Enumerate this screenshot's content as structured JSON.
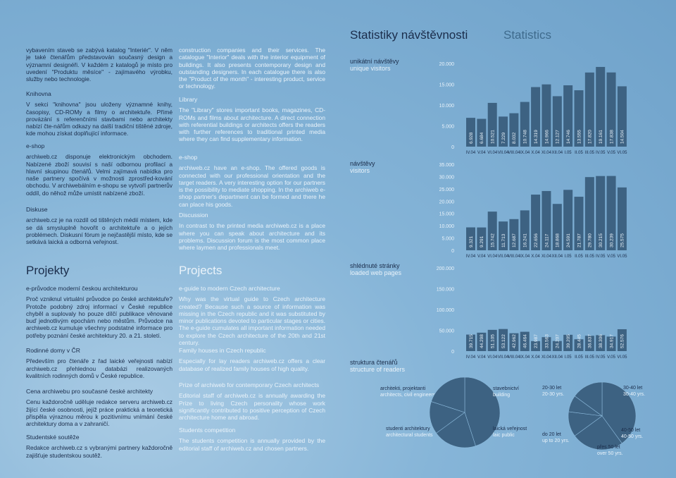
{
  "stats_title": "Statistiky návštěvnosti",
  "stats_title_en": "Statistics",
  "left": {
    "intro": "vybavením staveb se zabývá katalog \"Interiér\". V něm je také čtenářům představován současný design a významní designéři. V každém z katalogů je místo pro uvedení \"Produktu měsíce\" - zajímavého výrobku, služby nebo technologie.",
    "projects_heading": "Projekty",
    "blocks": [
      {
        "heading": "Knihovna",
        "text": "V sekci \"knihovna\" jsou uloženy významné knihy, časopisy, CD-ROMy a filmy o architektuře. Přímé provázání s referenčními stavbami nebo architekty nabízí čte-nářům odkazy na další tradiční tištěné zdroje, kde mohou získat doplňující informace."
      },
      {
        "heading": "e-shop",
        "text": "archiweb.cz disponuje elektronickým obchodem. Nabízené zboží souvisí s naší odbornou profilací a hlavní skupinou čtenářů. Velmi zajímavá nabídka pro naše partnery spočívá v možnosti zprostřed-kování obchodu. V archiwebálním e-shopu se vytvoří partnerův oddíl, do něhož může umístit nabízené zboží."
      },
      {
        "heading": "Diskuse",
        "text": "archiweb.cz je na rozdíl od tištěných médií místem, kde se dá smysluplně hovořit o architektuře a o jejích problémech. Diskusní fórum je nejčastější místo, kde se setkává laická a odborná veřejnost."
      },
      {
        "heading": "e-průvodce moderní českou architekturou",
        "text": "Proč vzniknul virtuální průvodce po české architektuře? Protože podobný zdroj informací v České republice chyběl a suplovaly ho pouze dílčí publikace věnované buď jednotlivým epochám nebo městům. Průvodce na archiweb.cz kumuluje všechny podstatné informace pro potřeby poznání české architektury 20. a 21. století."
      },
      {
        "heading": "Rodinné domy v ČR",
        "text": "Především pro čtenáře z řad laické veřejnosti nabízí archiweb.cz přehlednou databázi realizovaných kvalitních rodinných domů v České republice."
      },
      {
        "heading": "Cena archiwebu pro současné české architekty",
        "text": "Cenu každoročně uděluje redakce serveru archiweb.cz žijící české osobnosti, jejíž práce praktická a teoretická přispěla výraznou měrou k pozitivnímu vnímání české architektury doma a v zahraničí."
      },
      {
        "heading": "Studentské soutěže",
        "text": "Redakce archiweb.cz s vybranými partnery každoročně zajišťuje studentskou soutěž."
      }
    ]
  },
  "middle": {
    "intro": "construction companies and their services. The catalogue \"Interior\" deals with the interior equipment of buildings. It also presents contemporary design and outstanding designers. In each catalogue there is also the \"Product of the month\" - interesting product, service or technology.",
    "projects_heading": "Projects",
    "blocks": [
      {
        "heading": "Library",
        "text": "The \"Library\" stores important books, magazines, CD-ROMs and films about architecture. A direct connection with referential buildings or architects offers the readers with further references to traditional printed media where they can find supplementary information."
      },
      {
        "heading": "e-shop",
        "text": "archiweb.cz have an e-shop. The offered goods is connected with our professional orientation and the target readers. A very interesting option for our partners is the possibility to mediate shopping. In the archiweb e-shop partner's department can be formed and there he can place his goods."
      },
      {
        "heading": "Discussion",
        "text": "In contrast to the printed media archiweb.cz is a place where you can speak about architecture and its problems. Discussion forum is the most common place where laymen and professionals meet."
      },
      {
        "heading": "e-guide to modern Czech architecture",
        "text": "Why was the virtual guide to Czech architecture created? Because such a source of information was missing in the Czech republic and it was substituted by minor publications devoted to particular stages or cities. The e-guide cumulates all important information needed to explore the Czech architecture of the 20th and 21st century."
      },
      {
        "heading": "Family houses in Czech republic",
        "text": "Especially for lay readers archiweb.cz offers a clear database of realized family houses of high quality."
      },
      {
        "heading": "Prize of archiweb for contemporary Czech architects",
        "text": "Editorial staff of archiweb.cz is annually awarding the Prize to living Czech personality whose work significantly contributed to positive perception of Czech architecture home and abroad."
      },
      {
        "heading": "Students competition",
        "text": "The students competition is annually provided by the editorial staff of archiweb.cz and chosen partners."
      }
    ]
  },
  "chart_data": [
    {
      "type": "bar",
      "title": "unikátní návštěvy",
      "subtitle": "unique visitors",
      "color": "#3d6282",
      "categories": [
        "IV.04",
        "V.04",
        "VI.04",
        "VII.04",
        "VIII.04",
        "IX.04",
        "X.04",
        "XI.04",
        "XII.04",
        "I.05",
        "II.05",
        "III.05",
        "IV.05",
        "V.05",
        "VI.05"
      ],
      "values": [
        6928,
        6684,
        10521,
        7229,
        8032,
        10748,
        14319,
        14966,
        12127,
        14746,
        13555,
        17820,
        19161,
        17838,
        14504
      ],
      "value_labels": [
        "6.928",
        "6.684",
        "10.521",
        "7.229",
        "8.032",
        "10.748",
        "14.319",
        "14.966",
        "12.127",
        "14.746",
        "13.555",
        "17.820",
        "19.161",
        "17.838",
        "14.504"
      ],
      "ylim": [
        0,
        20000
      ],
      "yticks": [
        0,
        {
          "value": 5000,
          "label": "5.000"
        },
        {
          "value": 10000,
          "label": "10.000"
        },
        {
          "value": 15000,
          "label": "15.000"
        },
        {
          "value": 20000,
          "label": "20.000"
        }
      ]
    },
    {
      "type": "bar",
      "title": "návštěvy",
      "subtitle": "visitors",
      "color": "#3d6282",
      "categories": [
        "IV.04",
        "V.04",
        "VI.04",
        "VII.04",
        "VIII.04",
        "IX.04",
        "X.04",
        "XI.04",
        "XII.04",
        "I.05",
        "II.05",
        "III.05",
        "IV.05",
        "V.05",
        "VI.05"
      ],
      "values": [
        9321,
        9291,
        15742,
        11713,
        12687,
        16241,
        22656,
        24117,
        18868,
        24591,
        21787,
        29780,
        30215,
        30239,
        25575
      ],
      "value_labels": [
        "9.321",
        "9.291",
        "15.742",
        "11.713",
        "12.687",
        "16.241",
        "22.656",
        "24.117",
        "18.868",
        "24.591",
        "21.787",
        "29.780",
        "30.215",
        "30.239",
        "25.575"
      ],
      "ylim": [
        0,
        35000
      ],
      "yticks": [
        0,
        {
          "value": 5000,
          "label": "5.000"
        },
        {
          "value": 10000,
          "label": "10.000"
        },
        {
          "value": 15000,
          "label": "15.000"
        },
        {
          "value": 20000,
          "label": "20.000"
        },
        {
          "value": 25000,
          "label": "25.000"
        },
        {
          "value": 30000,
          "label": "30.000"
        },
        {
          "value": 35000,
          "label": "35.000"
        }
      ]
    },
    {
      "type": "bar",
      "title": "shlédnuté stránky",
      "subtitle": "loaded web pages",
      "color": "#3d6282",
      "categories": [
        "IV.04",
        "V.04",
        "VI.04",
        "VII.04",
        "VIII.04",
        "IX.04",
        "X.04",
        "XI.04",
        "XII.04",
        "I.05",
        "II.05",
        "III.05",
        "IV.05",
        "V.05",
        "VI.05"
      ],
      "values": [
        39715,
        44298,
        51105,
        53122,
        42962,
        46464,
        23987,
        33563,
        24207,
        39205,
        28445,
        36837,
        38306,
        34917,
        52576
      ],
      "value_labels": [
        "39.715",
        "44.298",
        "51.105",
        "53.122",
        "42.962",
        "46.464",
        "23.987",
        "33.563",
        "24.207",
        "39.205",
        "28.445",
        "36.837",
        "38.306",
        "34.917",
        "52.576"
      ],
      "ylim": [
        0,
        200000
      ],
      "yticks": [
        0,
        {
          "value": 50000,
          "label": "50.000"
        },
        {
          "value": 100000,
          "label": "100.000"
        },
        {
          "value": 150000,
          "label": "150.000"
        },
        {
          "value": 200000,
          "label": "200.000"
        }
      ]
    },
    {
      "type": "pie",
      "title": "struktura čtenářů",
      "subtitle": "structure of readers",
      "color": "#3d6282",
      "categories": [
        "architekti, projektanti",
        "stavebnictví",
        "laická veřejnost",
        "studenti architektury"
      ],
      "labels_en": [
        "architects, civil engineers",
        "building",
        "laic public",
        "architectural students"
      ],
      "values": [
        45,
        20,
        15,
        20
      ]
    },
    {
      "type": "pie",
      "color": "#3d6282",
      "categories": [
        "20-30 let",
        "30-40 let",
        "40-50 let",
        "přes 50 let",
        "do 20 let"
      ],
      "labels_en": [
        "20-30 yrs.",
        "30-40 yrs.",
        "40-50 yrs.",
        "over 50 yrs.",
        "up to 20 yrs."
      ],
      "values": [
        40,
        25,
        12,
        8,
        15
      ]
    }
  ]
}
